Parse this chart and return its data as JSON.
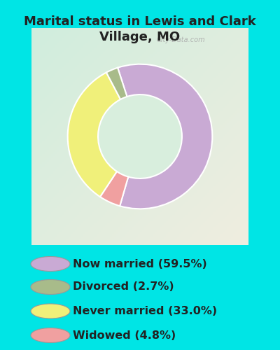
{
  "title": "Marital status in Lewis and Clark\nVillage, MO",
  "slices": [
    59.5,
    2.7,
    33.0,
    4.8
  ],
  "colors": [
    "#c9aad4",
    "#a8bb8a",
    "#f0f07a",
    "#f0a0a0"
  ],
  "labels": [
    "Now married (59.5%)",
    "Divorced (2.7%)",
    "Never married (33.0%)",
    "Widowed (4.8%)"
  ],
  "outer_bg_color": "#00e5e5",
  "chart_panel_color": "#d8eedd",
  "donut_inner_color": "#d8eedd",
  "title_fontsize": 13,
  "legend_fontsize": 11.5,
  "watermark": "City-Data.com",
  "wedge_order": [
    0,
    3,
    2,
    1
  ],
  "start_angle": 108,
  "donut_width": 0.42
}
